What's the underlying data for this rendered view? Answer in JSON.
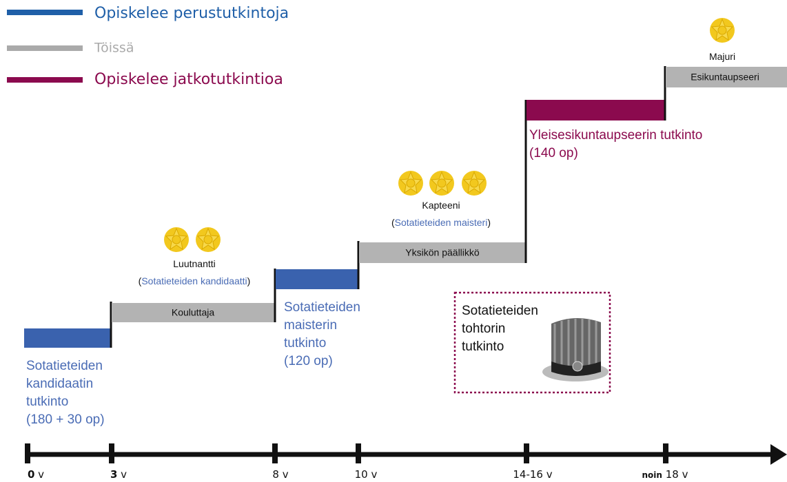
{
  "legend": [
    {
      "label": "Opiskelee perustutkintoja"
    },
    {
      "label": "Töissä"
    },
    {
      "label": "Opiskelee jatkotutkintioa"
    }
  ],
  "steps": [
    {
      "label": "Kouluttaja"
    },
    {
      "label": "Yksikön päällikkö"
    },
    {
      "label": "Esikuntaupseeri"
    }
  ],
  "degrees": [
    {
      "lines": [
        "Sotatieteiden",
        "kandidaatin",
        "tutkinto",
        "(180 + 30 op)"
      ]
    },
    {
      "lines": [
        "Sotatieteiden",
        "maisterin",
        "tutkinto",
        "(120 op)"
      ]
    },
    {
      "lines": [
        "Yleisesikuntaupseerin tutkinto",
        "(140 op)"
      ]
    }
  ],
  "ranks": [
    {
      "title": "Luutnantti",
      "degree": [
        "(",
        "Sotatieteiden kandidaatti",
        ")"
      ]
    },
    {
      "title": "Kapteeni",
      "degree": [
        "(",
        "Sotatieteiden maisteri",
        ")"
      ]
    },
    {
      "title": "Majuri"
    }
  ],
  "doctorate": {
    "lines": [
      "Sotatieteiden",
      "tohtorin",
      "tutkinto"
    ]
  },
  "timeline": [
    {
      "value": "0",
      "unit": "v"
    },
    {
      "value": "3",
      "unit": "v"
    },
    {
      "value": "8",
      "unit": "v"
    },
    {
      "value": "10",
      "unit": "v"
    },
    {
      "value": "14-16",
      "unit": "v"
    },
    {
      "prefix": "noin",
      "value": "18",
      "unit": "v"
    }
  ]
}
